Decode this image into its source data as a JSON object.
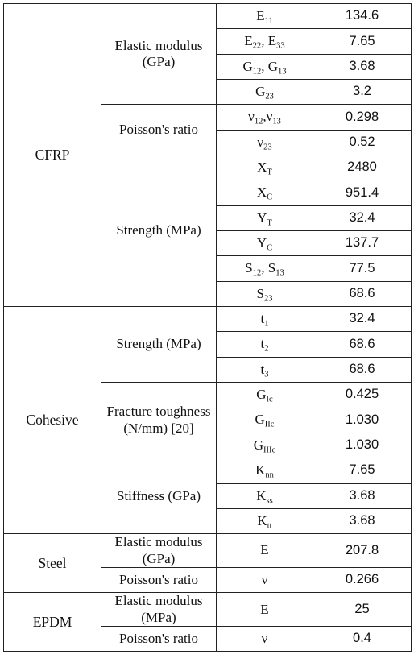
{
  "table": {
    "groups": [
      {
        "name": "CFRP",
        "categories": [
          {
            "label_lines": [
              "Elastic modulus",
              "(GPa)"
            ],
            "rows": [
              {
                "symbol": [
                  {
                    "base": "E",
                    "sub": "11"
                  }
                ],
                "value": "134.6"
              },
              {
                "symbol": [
                  {
                    "base": "E",
                    "sub": "22"
                  },
                  {
                    "text": ", "
                  },
                  {
                    "base": "E",
                    "sub": "33"
                  }
                ],
                "value": "7.65"
              },
              {
                "symbol": [
                  {
                    "base": "G",
                    "sub": "12"
                  },
                  {
                    "text": ", "
                  },
                  {
                    "base": "G",
                    "sub": "13"
                  }
                ],
                "value": "3.68"
              },
              {
                "symbol": [
                  {
                    "base": "G",
                    "sub": "23"
                  }
                ],
                "value": "3.2"
              }
            ]
          },
          {
            "label_lines": [
              "Poisson's ratio"
            ],
            "rows": [
              {
                "symbol": [
                  {
                    "base": "ν",
                    "sub": "12"
                  },
                  {
                    "text": ","
                  },
                  {
                    "base": "ν",
                    "sub": "13"
                  }
                ],
                "value": "0.298"
              },
              {
                "symbol": [
                  {
                    "base": "ν",
                    "sub": "23"
                  }
                ],
                "value": "0.52"
              }
            ]
          },
          {
            "label_lines": [
              "Strength (MPa)"
            ],
            "rows": [
              {
                "symbol": [
                  {
                    "base": "X",
                    "sub": "T"
                  }
                ],
                "value": "2480"
              },
              {
                "symbol": [
                  {
                    "base": "X",
                    "sub": "C"
                  }
                ],
                "value": "951.4"
              },
              {
                "symbol": [
                  {
                    "base": "Y",
                    "sub": "T"
                  }
                ],
                "value": "32.4"
              },
              {
                "symbol": [
                  {
                    "base": "Y",
                    "sub": "C"
                  }
                ],
                "value": "137.7"
              },
              {
                "symbol": [
                  {
                    "base": "S",
                    "sub": "12"
                  },
                  {
                    "text": ", "
                  },
                  {
                    "base": "S",
                    "sub": "13"
                  }
                ],
                "value": "77.5"
              },
              {
                "symbol": [
                  {
                    "base": "S",
                    "sub": "23"
                  }
                ],
                "value": "68.6"
              }
            ]
          }
        ]
      },
      {
        "name": "Cohesive",
        "categories": [
          {
            "label_lines": [
              "Strength (MPa)"
            ],
            "rows": [
              {
                "symbol": [
                  {
                    "base": "t",
                    "sub": "1"
                  }
                ],
                "value": "32.4"
              },
              {
                "symbol": [
                  {
                    "base": "t",
                    "sub": "2"
                  }
                ],
                "value": "68.6"
              },
              {
                "symbol": [
                  {
                    "base": "t",
                    "sub": "3"
                  }
                ],
                "value": "68.6"
              }
            ]
          },
          {
            "label_lines": [
              "Fracture toughness",
              "(N/mm) [20]"
            ],
            "rows": [
              {
                "symbol": [
                  {
                    "base": "G",
                    "sub": "Ic"
                  }
                ],
                "value": "0.425"
              },
              {
                "symbol": [
                  {
                    "base": "G",
                    "sub": "IIc"
                  }
                ],
                "value": "1.030"
              },
              {
                "symbol": [
                  {
                    "base": "G",
                    "sub": "IIIc"
                  }
                ],
                "value": "1.030"
              }
            ]
          },
          {
            "label_lines": [
              "Stiffness (GPa)"
            ],
            "rows": [
              {
                "symbol": [
                  {
                    "base": "K",
                    "sub": "nn"
                  }
                ],
                "value": "7.65"
              },
              {
                "symbol": [
                  {
                    "base": "K",
                    "sub": "ss"
                  }
                ],
                "value": "3.68"
              },
              {
                "symbol": [
                  {
                    "base": "K",
                    "sub": "tt"
                  }
                ],
                "value": "3.68"
              }
            ]
          }
        ]
      },
      {
        "name": "Steel",
        "categories": [
          {
            "label_lines": [
              "Elastic modulus",
              "(GPa)"
            ],
            "rows": [
              {
                "symbol": [
                  {
                    "text": "E"
                  }
                ],
                "value": "207.8"
              }
            ]
          },
          {
            "label_lines": [
              "Poisson's ratio"
            ],
            "rows": [
              {
                "symbol": [
                  {
                    "text": "ν"
                  }
                ],
                "value": "0.266"
              }
            ]
          }
        ]
      },
      {
        "name": "EPDM",
        "categories": [
          {
            "label_lines": [
              "Elastic modulus",
              "(MPa)"
            ],
            "rows": [
              {
                "symbol": [
                  {
                    "text": "E"
                  }
                ],
                "value": "25"
              }
            ]
          },
          {
            "label_lines": [
              "Poisson's ratio"
            ],
            "rows": [
              {
                "symbol": [
                  {
                    "text": "ν"
                  }
                ],
                "value": "0.4"
              }
            ]
          }
        ]
      }
    ]
  }
}
